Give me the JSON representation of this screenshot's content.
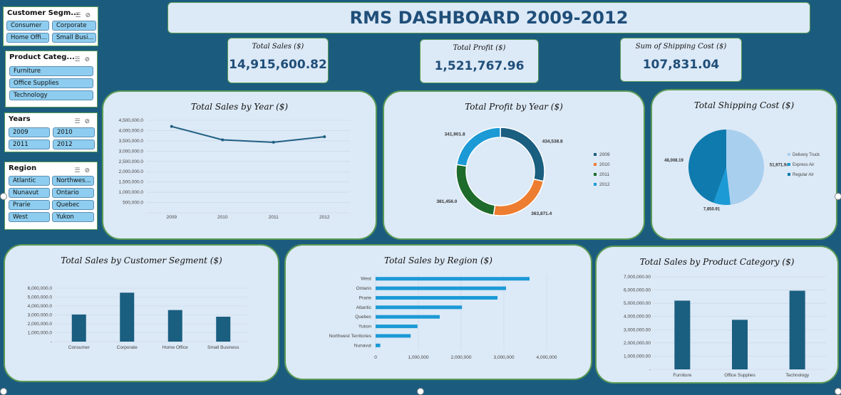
{
  "dashboard_title": "RMS DASHBOARD 2009-2012",
  "kpis": [
    {
      "label": "Total Sales ($)",
      "value": "14,915,600.82"
    },
    {
      "label": "Total Profit ($)",
      "value": "1,521,767.96"
    },
    {
      "label": "Sum of Shipping Cost ($)",
      "value": "107,831.04"
    }
  ],
  "slicers": [
    {
      "title": "Customer Segm...",
      "items": [
        "Consumer",
        "Corporate",
        "Home Offi...",
        "Small Busi..."
      ]
    },
    {
      "title": "Product Categ...",
      "items": [
        "Furniture",
        "Office Supplies",
        "Technology"
      ]
    },
    {
      "title": "Years",
      "items": [
        "2009",
        "2010",
        "2011",
        "2012"
      ]
    },
    {
      "title": "Region",
      "items": [
        "Atlantic",
        "Northwes...",
        "Nunavut",
        "Ontario",
        "Prarie",
        "Quebec",
        "West",
        "Yukon"
      ]
    }
  ],
  "colors": {
    "bar": "#1a5e80",
    "hbar": "#1b9ad6",
    "line": "#1f5f82",
    "y2009": "#1a5e80",
    "y2010": "#ed7d31",
    "y2011": "#1e6b2c",
    "y2012": "#1b9ad6",
    "delivery": "#a9cfee",
    "express": "#1b9ad6",
    "regular": "#0e7aad"
  },
  "chart_data": [
    {
      "type": "line",
      "title": "Total Sales by Year ($)",
      "categories": [
        "2009",
        "2010",
        "2011",
        "2012"
      ],
      "values": [
        4200000,
        3550000,
        3430000,
        3700000
      ],
      "ylim": [
        0,
        4500000
      ],
      "yticks": [
        "",
        "500,000.0",
        "1,000,000.0",
        "1,500,000.0",
        "2,000,000.0",
        "2,500,000.0",
        "3,000,000.0",
        "3,500,000.0",
        "4,000,000.0",
        "4,500,000.0"
      ]
    },
    {
      "type": "pie",
      "title": "Total Profit by Year ($)",
      "donut": true,
      "labels": [
        "2009",
        "2010",
        "2011",
        "2012"
      ],
      "values": [
        434538.8,
        363871.4,
        381456.0,
        341901.8
      ],
      "data_labels": [
        "434,538.8",
        "363,871.4",
        "381,456.0",
        "341,901.8"
      ],
      "legend": "right"
    },
    {
      "type": "pie",
      "title": "Total Shipping Cost ($)",
      "labels": [
        "Delivery Truck",
        "Express Air",
        "Regular Air"
      ],
      "values": [
        51971.94,
        7850.91,
        48008.19
      ],
      "data_labels": [
        "51,971.94",
        "7,850.91",
        "48,008.19"
      ],
      "legend": "right"
    },
    {
      "type": "bar",
      "title": "Total Sales by Customer Segment ($)",
      "categories": [
        "Consumer",
        "Corporate",
        "Home Office",
        "Small Business"
      ],
      "values": [
        3050000,
        5500000,
        3550000,
        2800000
      ],
      "ylim": [
        0,
        6000000
      ],
      "yticks": [
        "-",
        "1,000,000.0",
        "2,000,000.0",
        "3,000,000.0",
        "4,000,000.0",
        "5,000,000.0",
        "6,000,000.0"
      ]
    },
    {
      "type": "bar",
      "orientation": "horizontal",
      "title": "Total Sales by Region ($)",
      "categories": [
        "West",
        "Ontario",
        "Prarie",
        "Atlantic",
        "Quebec",
        "Yukon",
        "Northwest Territories",
        "Nunavut"
      ],
      "values": [
        3600000,
        3050000,
        2850000,
        2020000,
        1500000,
        980000,
        820000,
        110000
      ],
      "xlim": [
        0,
        4000000
      ],
      "xticks": [
        "0",
        "1,000,000",
        "2,000,000",
        "3,000,000",
        "4,000,000"
      ]
    },
    {
      "type": "bar",
      "title": "Total Sales by Product Category ($)",
      "categories": [
        "Furniture",
        "Office Supplies",
        "Technology"
      ],
      "values": [
        5200000,
        3750000,
        5950000
      ],
      "ylim": [
        0,
        7000000
      ],
      "yticks": [
        "-",
        "1,000,000.00",
        "2,000,000.00",
        "3,000,000.00",
        "4,000,000.00",
        "5,000,000.00",
        "6,000,000.00",
        "7,000,000.00"
      ]
    }
  ]
}
